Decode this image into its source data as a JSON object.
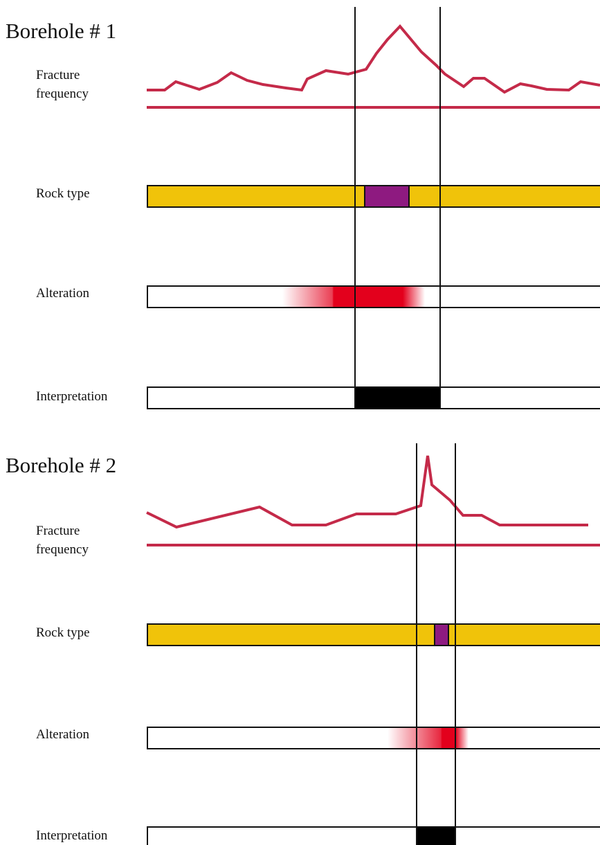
{
  "colors": {
    "frequency": "#c42a49",
    "rock_host": "#f0c30a",
    "rock_other": "#8e1a80",
    "alteration": "#e3001c",
    "interpretation": "#000000",
    "outline": "#111111"
  },
  "boreholes": [
    {
      "title": "Borehole # 1",
      "labels": {
        "frequency_line1": "Fracture",
        "frequency_line2": "frequency",
        "rock": "Rock type",
        "alteration": "Alteration",
        "interpretation": "Interpretation"
      }
    },
    {
      "title": "Borehole # 2",
      "labels": {
        "frequency_line1": "Fracture",
        "frequency_line2": "frequency",
        "rock": "Rock type",
        "alteration": "Alteration",
        "interpretation": "Interpretation"
      }
    }
  ]
}
